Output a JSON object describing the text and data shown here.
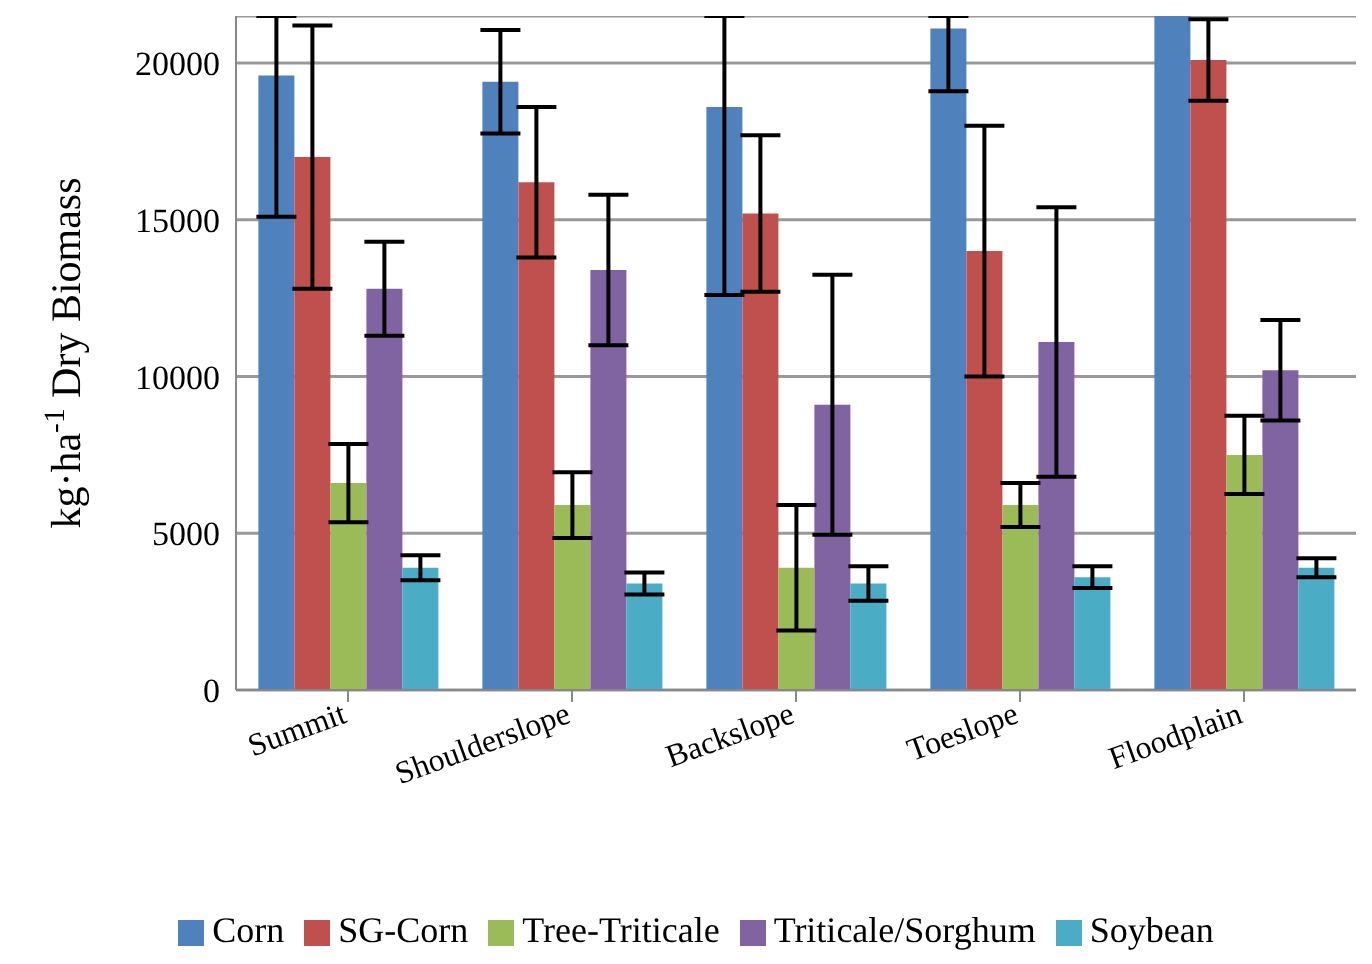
{
  "chart_data": {
    "type": "bar",
    "ylabel": "kg·ha$^{-1}$ Dry Biomass",
    "categories": [
      "Summit",
      "Shoulderslope",
      "Backslope",
      "Toeslope",
      "Floodplain"
    ],
    "series": [
      {
        "name": "Corn",
        "color": "#4f81bd",
        "values": [
          19600,
          19400,
          18600,
          21100,
          21500
        ],
        "errors": [
          [
            15100,
            21500
          ],
          1650,
          [
            12600,
            21500
          ],
          [
            19100,
            21500
          ],
          null
        ]
      },
      {
        "name": "SG-Corn",
        "color": "#c0504d",
        "values": [
          17000,
          16200,
          15200,
          14000,
          20100
        ],
        "errors": [
          4200,
          2400,
          2500,
          4000,
          1300
        ]
      },
      {
        "name": "Tree-Triticale",
        "color": "#9bbb59",
        "values": [
          6600,
          5900,
          3900,
          5900,
          7500
        ],
        "errors": [
          1250,
          1050,
          2000,
          700,
          1250
        ]
      },
      {
        "name": "Triticale/Sorghum",
        "color": "#8064a2",
        "values": [
          12800,
          13400,
          9100,
          11100,
          10200
        ],
        "errors": [
          1500,
          2400,
          4150,
          4300,
          1600
        ]
      },
      {
        "name": "Soybean",
        "color": "#4bacc6",
        "values": [
          3900,
          3400,
          3400,
          3600,
          3900
        ],
        "errors": [
          400,
          350,
          550,
          350,
          300
        ]
      }
    ],
    "ylim": [
      0,
      21500
    ],
    "yticks": [
      0,
      5000,
      10000,
      15000,
      20000
    ],
    "grid": "y",
    "legend": "bottom"
  }
}
